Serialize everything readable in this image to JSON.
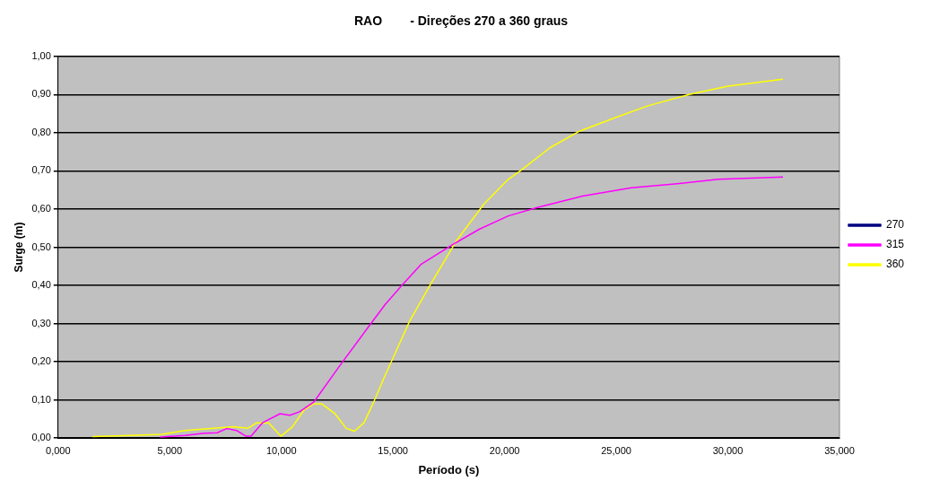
{
  "chart_data": {
    "type": "line",
    "title": "RAO        - Direções 270 a 360 graus",
    "xlabel": "Período (s)",
    "ylabel": "Surge (m)",
    "xlim": [
      0,
      35
    ],
    "ylim": [
      0,
      1
    ],
    "xticks": [
      {
        "value": 0,
        "label": "0,000"
      },
      {
        "value": 5,
        "label": "5,000"
      },
      {
        "value": 10,
        "label": "10,000"
      },
      {
        "value": 15,
        "label": "15,000"
      },
      {
        "value": 20,
        "label": "20,000"
      },
      {
        "value": 25,
        "label": "25,000"
      },
      {
        "value": 30,
        "label": "30,000"
      },
      {
        "value": 35,
        "label": "35,000"
      }
    ],
    "yticks": [
      {
        "value": 0,
        "label": "0,00"
      },
      {
        "value": 0.1,
        "label": "0,10"
      },
      {
        "value": 0.2,
        "label": "0,20"
      },
      {
        "value": 0.3,
        "label": "0,30"
      },
      {
        "value": 0.4,
        "label": "0,40"
      },
      {
        "value": 0.5,
        "label": "0,50"
      },
      {
        "value": 0.6,
        "label": "0,60"
      },
      {
        "value": 0.7,
        "label": "0,70"
      },
      {
        "value": 0.8,
        "label": "0,80"
      },
      {
        "value": 0.9,
        "label": "0,90"
      },
      {
        "value": 1,
        "label": "1,00"
      }
    ],
    "grid": "y",
    "legend": "right",
    "marker": "none",
    "line_style": "solid",
    "series": [
      {
        "name": "270",
        "color": "#000080"
      },
      {
        "name": "315",
        "color": "#ff00ff",
        "x": [
          4.58,
          5.67,
          6.54,
          7.12,
          7.55,
          7.99,
          8.42,
          8.64,
          9.15,
          9.94,
          10.38,
          10.81,
          11.46,
          12.62,
          13.78,
          14.65,
          15.38,
          16.25,
          17.7,
          18.86,
          20.16,
          21.46,
          23.49,
          25.67,
          27.84,
          29.57,
          32.47
        ],
        "values": [
          0.003,
          0.007,
          0.013,
          0.014,
          0.025,
          0.02,
          0.005,
          0.005,
          0.04,
          0.064,
          0.06,
          0.069,
          0.095,
          0.19,
          0.282,
          0.35,
          0.399,
          0.455,
          0.508,
          0.547,
          0.582,
          0.604,
          0.634,
          0.656,
          0.667,
          0.678,
          0.684
        ]
      },
      {
        "name": "360",
        "color": "#ffff00",
        "x": [
          1.54,
          3.2,
          4.65,
          5.67,
          6.83,
          7.84,
          8.5,
          8.9,
          9.43,
          9.98,
          10.5,
          11.03,
          11.46,
          11.8,
          12.4,
          12.9,
          13.27,
          13.7,
          14.14,
          14.65,
          14.94,
          15.75,
          16.68,
          17.84,
          19.07,
          20.16,
          20.74,
          22.04,
          23.35,
          24.94,
          26.39,
          28.27,
          30.01,
          32.47
        ],
        "values": [
          0.004,
          0.007,
          0.01,
          0.02,
          0.025,
          0.03,
          0.026,
          0.04,
          0.04,
          0.005,
          0.03,
          0.075,
          0.09,
          0.09,
          0.064,
          0.026,
          0.018,
          0.04,
          0.095,
          0.165,
          0.202,
          0.307,
          0.403,
          0.517,
          0.613,
          0.678,
          0.702,
          0.761,
          0.804,
          0.839,
          0.87,
          0.9,
          0.922,
          0.94
        ]
      }
    ]
  }
}
